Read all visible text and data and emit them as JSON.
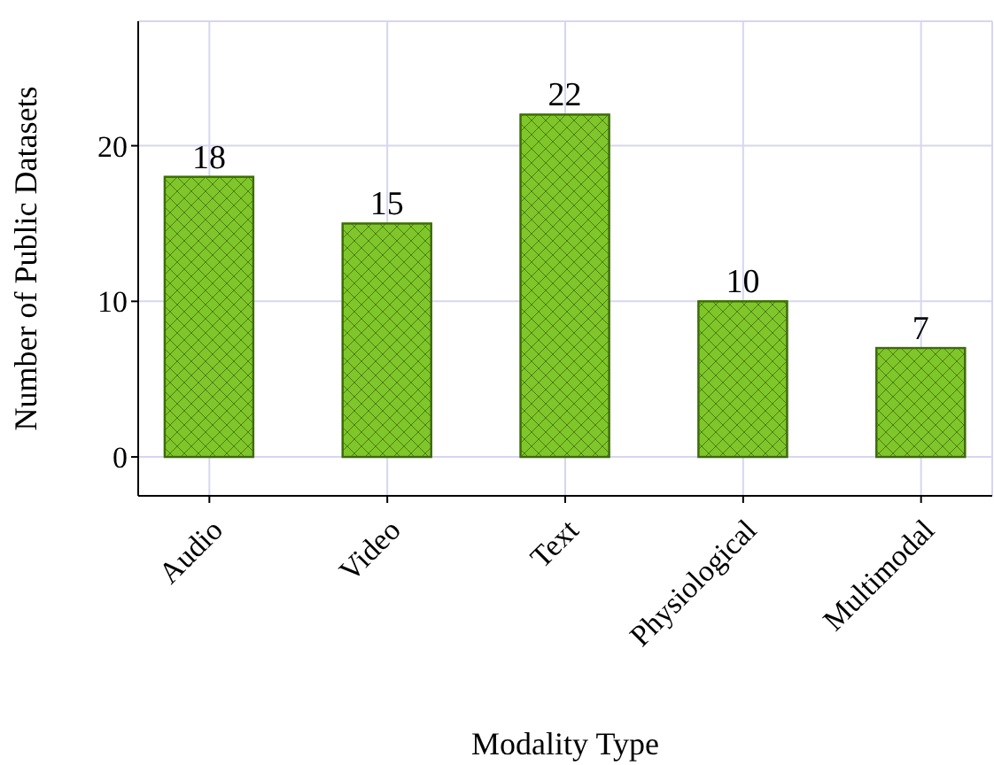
{
  "chart_data": {
    "type": "bar",
    "xlabel": "Modality Type",
    "ylabel": "Number of Public Datasets",
    "categories": [
      "Audio",
      "Video",
      "Text",
      "Physiological",
      "Multimodal"
    ],
    "values": [
      18,
      15,
      22,
      10,
      7
    ],
    "color": "#7fc62a",
    "ylim": [
      -2.5,
      28
    ],
    "yticks": [
      0,
      10,
      20
    ],
    "grid": true,
    "data_labels": true
  }
}
